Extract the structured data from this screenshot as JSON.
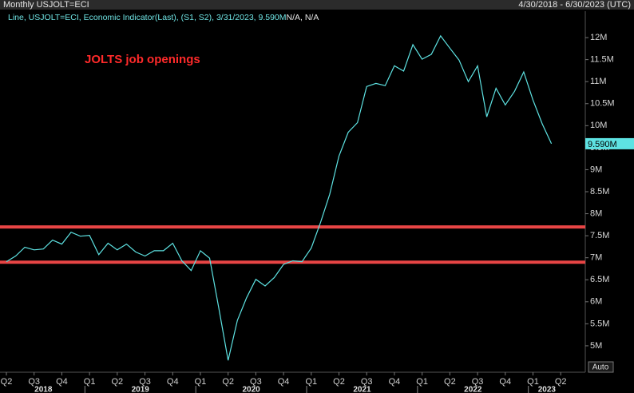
{
  "chart_data": {
    "type": "line",
    "header_left": "Monthly USJOLT=ECI",
    "header_right": "4/30/2018 - 6/30/2023 (UTC)",
    "legend": "Line, USJOLT=ECI, Economic Indicator(Last), (S1, S2), 3/31/2023, 9.590M",
    "legend_extra": "N/A, N/A",
    "annotation": "JOLTS job openings",
    "button": "Auto",
    "categories": [
      "Q2",
      null,
      null,
      "Q3",
      null,
      null,
      "Q4",
      null,
      null,
      "Q1",
      null,
      null,
      "Q2",
      null,
      null,
      "Q3",
      null,
      null,
      "Q4",
      null,
      null,
      "Q1",
      null,
      null,
      "Q2",
      null,
      null,
      "Q3",
      null,
      null,
      "Q4",
      null,
      null,
      "Q1",
      null,
      null,
      "Q2",
      null,
      null,
      "Q3",
      null,
      null,
      "Q4",
      null,
      null,
      "Q1",
      null,
      null,
      "Q2",
      null,
      null,
      "Q3",
      null,
      null,
      "Q4",
      null,
      null,
      "Q1",
      null,
      null,
      "Q2"
    ],
    "years": [
      "2018",
      "2019",
      "2020",
      "2021",
      "2022",
      "2023"
    ],
    "series": [
      {
        "name": "USJOLT=ECI",
        "color": "#5ee3e3",
        "values": [
          6.91,
          7.04,
          7.24,
          7.18,
          7.2,
          7.4,
          7.31,
          7.58,
          7.49,
          7.51,
          7.07,
          7.33,
          7.18,
          7.31,
          7.13,
          7.04,
          7.16,
          7.16,
          7.33,
          6.93,
          6.71,
          7.16,
          6.99,
          5.85,
          4.67,
          5.58,
          6.09,
          6.51,
          6.36,
          6.55,
          6.85,
          6.93,
          6.91,
          7.22,
          7.8,
          8.44,
          9.31,
          9.85,
          10.07,
          10.89,
          10.96,
          10.91,
          11.36,
          11.24,
          11.84,
          11.51,
          11.62,
          12.04,
          11.76,
          11.49,
          11.0,
          11.36,
          10.2,
          10.85,
          10.47,
          10.78,
          11.22,
          10.58,
          10.04,
          9.59,
          null
        ],
        "last_value": 9.59,
        "last_value_label": "9.590M"
      }
    ],
    "reference_lines": [
      7.7,
      6.9
    ],
    "reference_line_color": "#e84545",
    "ylim": [
      4.4,
      12.6
    ],
    "yticks": [
      {
        "value": 5,
        "label": "5M"
      },
      {
        "value": 5.5,
        "label": "5.5M"
      },
      {
        "value": 6,
        "label": "6M"
      },
      {
        "value": 6.5,
        "label": "6.5M"
      },
      {
        "value": 7,
        "label": "7M"
      },
      {
        "value": 7.5,
        "label": "7.5M"
      },
      {
        "value": 8,
        "label": "8M"
      },
      {
        "value": 8.5,
        "label": "8.5M"
      },
      {
        "value": 9,
        "label": "9M"
      },
      {
        "value": 9.5,
        "label": "9.5M"
      },
      {
        "value": 10,
        "label": "10M"
      },
      {
        "value": 10.5,
        "label": "10.5M"
      },
      {
        "value": 11,
        "label": "11M"
      },
      {
        "value": 11.5,
        "label": "11.5M"
      },
      {
        "value": 12,
        "label": "12M"
      }
    ],
    "grid": false
  }
}
